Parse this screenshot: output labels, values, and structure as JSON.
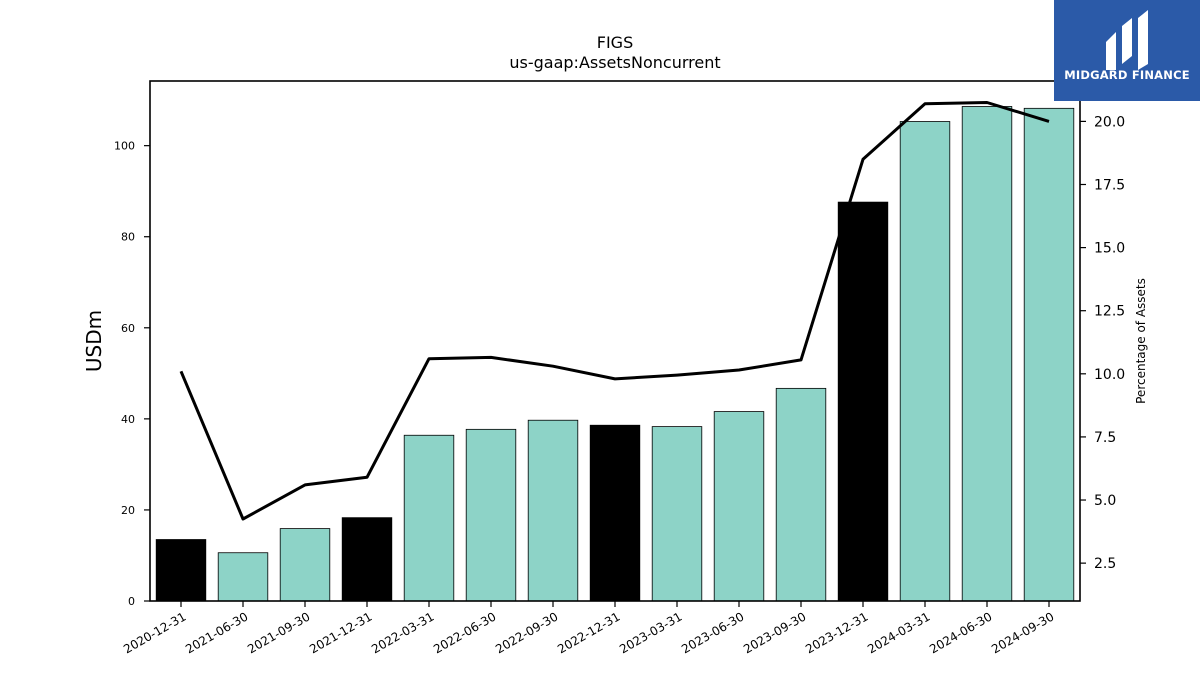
{
  "chart_data": {
    "type": "bar",
    "title": "FIGS",
    "subtitle": "us-gaap:AssetsNoncurrent",
    "ylabel": "USDm",
    "y2label": "Percentage of Assets",
    "categories": [
      "2020-12-31",
      "2021-06-30",
      "2021-09-30",
      "2021-12-31",
      "2022-03-31",
      "2022-06-30",
      "2022-09-30",
      "2022-12-31",
      "2023-03-31",
      "2023-06-30",
      "2023-09-30",
      "2023-12-31",
      "2024-03-31",
      "2024-06-30",
      "2024-09-30"
    ],
    "series": [
      {
        "type": "bar",
        "values": [
          13.5,
          10.6,
          15.9,
          18.3,
          36.4,
          37.7,
          39.7,
          38.6,
          38.3,
          41.6,
          46.7,
          87.6,
          105.3,
          108.6,
          108.2
        ],
        "highlight": [
          true,
          false,
          false,
          true,
          false,
          false,
          false,
          true,
          false,
          false,
          false,
          true,
          false,
          false,
          false
        ]
      },
      {
        "type": "line",
        "axis": "right",
        "values": [
          10.1,
          4.25,
          5.6,
          5.9,
          10.6,
          10.65,
          10.3,
          9.8,
          9.95,
          10.15,
          10.55,
          18.5,
          20.7,
          20.75,
          20.0
        ]
      }
    ],
    "ylim": [
      0,
      114.2
    ],
    "y2lim": [
      1.0,
      21.6
    ],
    "yticks": [
      0,
      20,
      40,
      60,
      80,
      100
    ],
    "y2ticks": [
      2.5,
      5.0,
      7.5,
      10.0,
      12.5,
      15.0,
      17.5,
      20.0
    ],
    "colors": {
      "bar": "#8dd3c7",
      "highlight_bar": "#000000",
      "line": "#000000"
    },
    "grid": false,
    "legend": "none"
  },
  "logo": {
    "text": "MIDGARD FINANCE"
  }
}
